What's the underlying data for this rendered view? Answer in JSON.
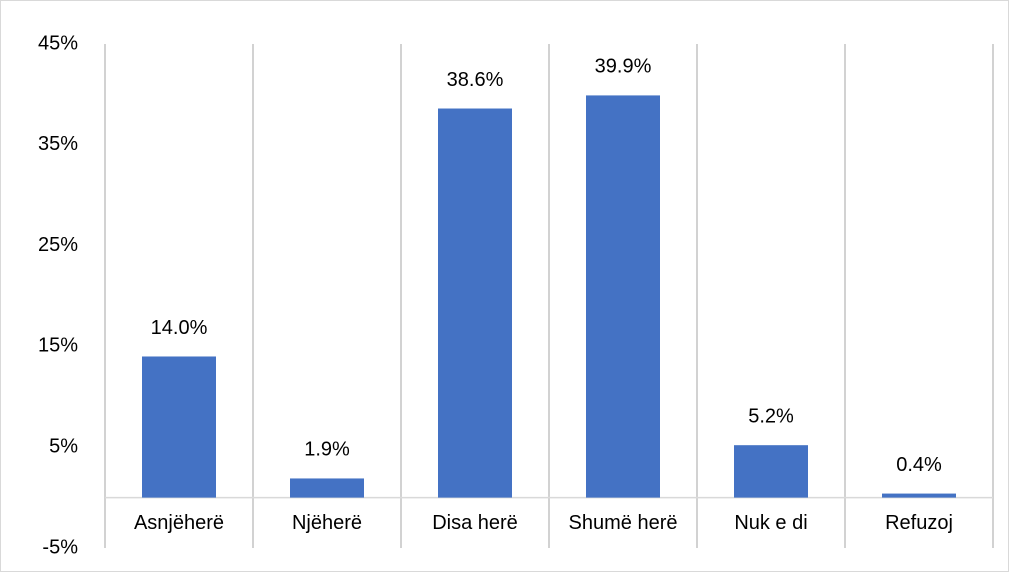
{
  "chart_data": {
    "type": "bar",
    "categories": [
      "Asnjëherë",
      "Njëherë",
      "Disa herë",
      "Shumë herë",
      "Nuk e di",
      "Refuzoj"
    ],
    "values": [
      14.0,
      1.9,
      38.6,
      39.9,
      5.2,
      0.4
    ],
    "value_labels": [
      "14.0%",
      "1.9%",
      "38.6%",
      "39.9%",
      "5.2%",
      "0.4%"
    ],
    "color": "#4472c4",
    "ylim": [
      -5,
      45
    ],
    "yticks": [
      {
        "value": -5,
        "label": "-5%"
      },
      {
        "value": 5,
        "label": "5%"
      },
      {
        "value": 15,
        "label": "15%"
      },
      {
        "value": 25,
        "label": "25%"
      },
      {
        "value": 35,
        "label": "35%"
      },
      {
        "value": 45,
        "label": "45%"
      }
    ],
    "grid": false
  }
}
